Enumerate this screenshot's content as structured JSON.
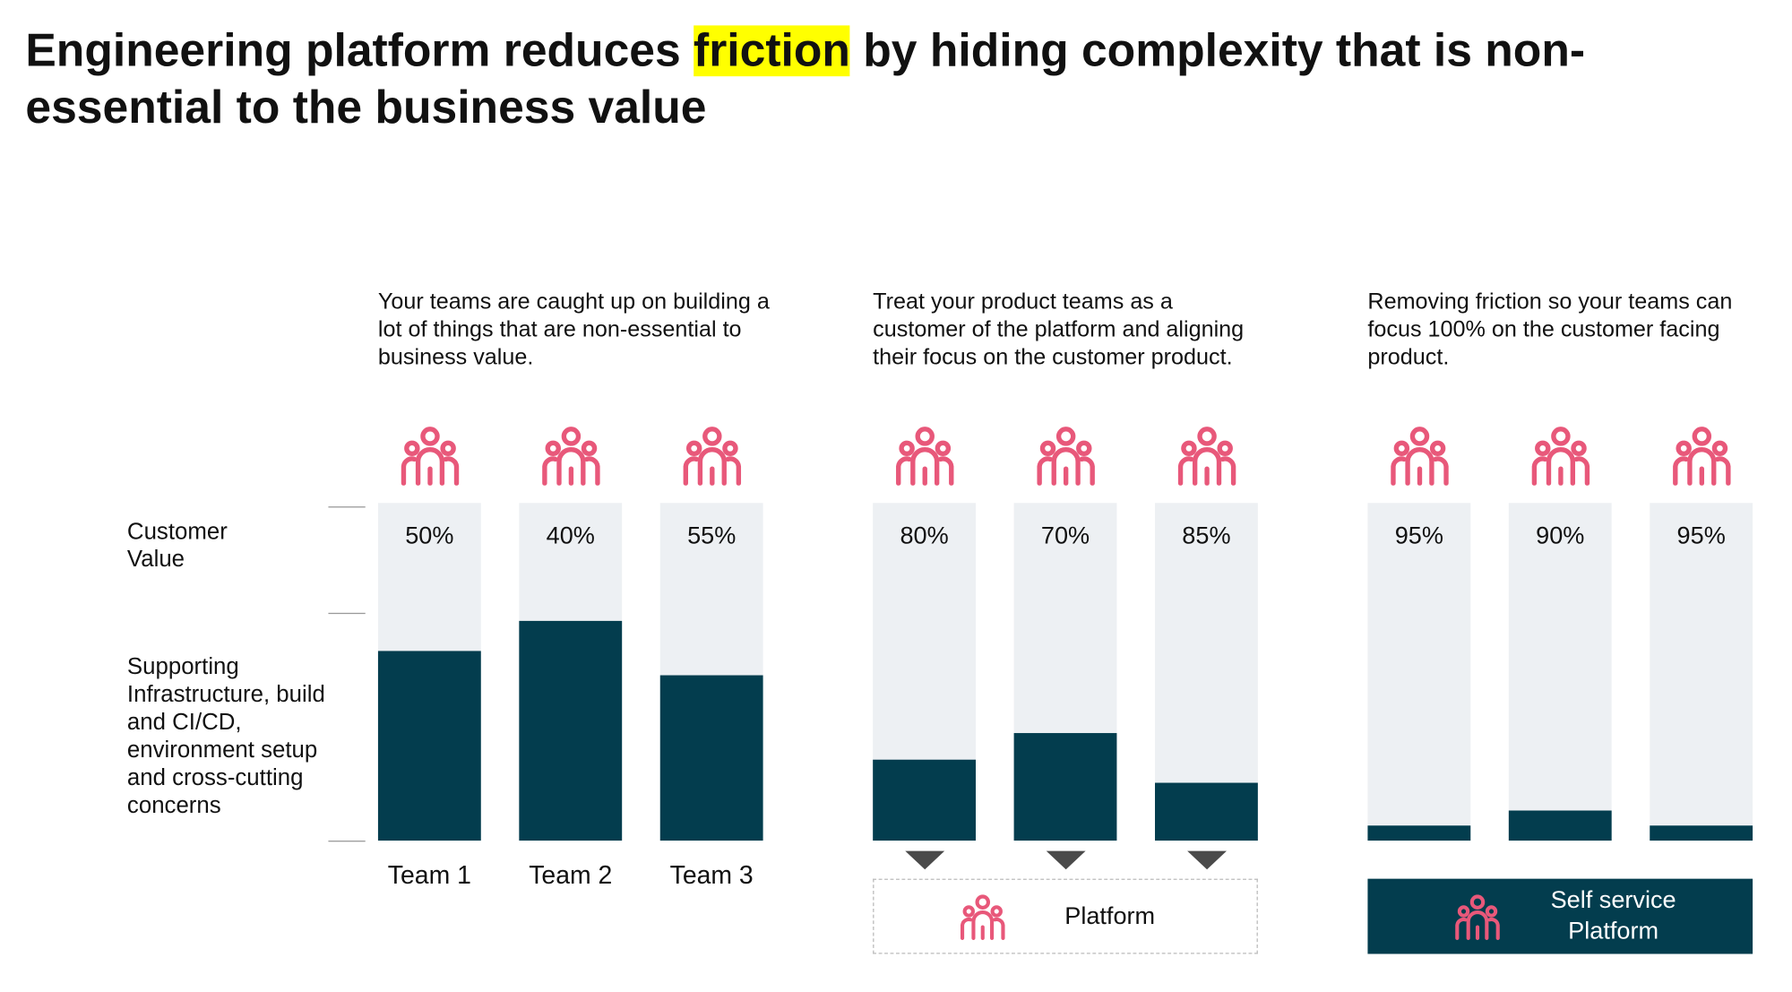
{
  "title": [
    "Engineering platform reduces ",
    "friction",
    " by hiding complexity that is non-essential to the business value"
  ],
  "chart_data": [
    {
      "type": "bar",
      "subtitle": "Your teams are caught up on building a lot of things that are non-essential to business value.",
      "categories": [
        "Team 1",
        "Team 2",
        "Team 3"
      ],
      "top_label": "Customer Value",
      "bar_labels": [
        "50%",
        "40%",
        "55%"
      ],
      "series": [
        {
          "name": "Supporting Infrastructure, build and CI/CD, environment setup and cross-cutting concerns",
          "color": "#033d4e",
          "values": [
            56,
            65,
            49
          ]
        }
      ],
      "ylim": [
        0,
        100
      ]
    },
    {
      "type": "bar",
      "subtitle": "Treat your product teams as a customer of the platform and aligning their focus on the customer product.",
      "categories": [
        null,
        null,
        null
      ],
      "bar_labels": [
        "80%",
        "70%",
        "85%"
      ],
      "series": [
        {
          "color": "#033d4e",
          "values": [
            24,
            32,
            17
          ]
        }
      ],
      "ylim": [
        0,
        100
      ],
      "footer": "Platform"
    },
    {
      "type": "bar",
      "subtitle": "Removing friction so your teams can focus 100% on the customer facing product.",
      "categories": [
        null,
        null,
        null
      ],
      "bar_labels": [
        "95%",
        "90%",
        "95%"
      ],
      "series": [
        {
          "color": "#033d4e",
          "values": [
            4.5,
            9,
            4.5
          ]
        }
      ],
      "ylim": [
        0,
        100
      ],
      "footer": "Self service Platform"
    }
  ]
}
